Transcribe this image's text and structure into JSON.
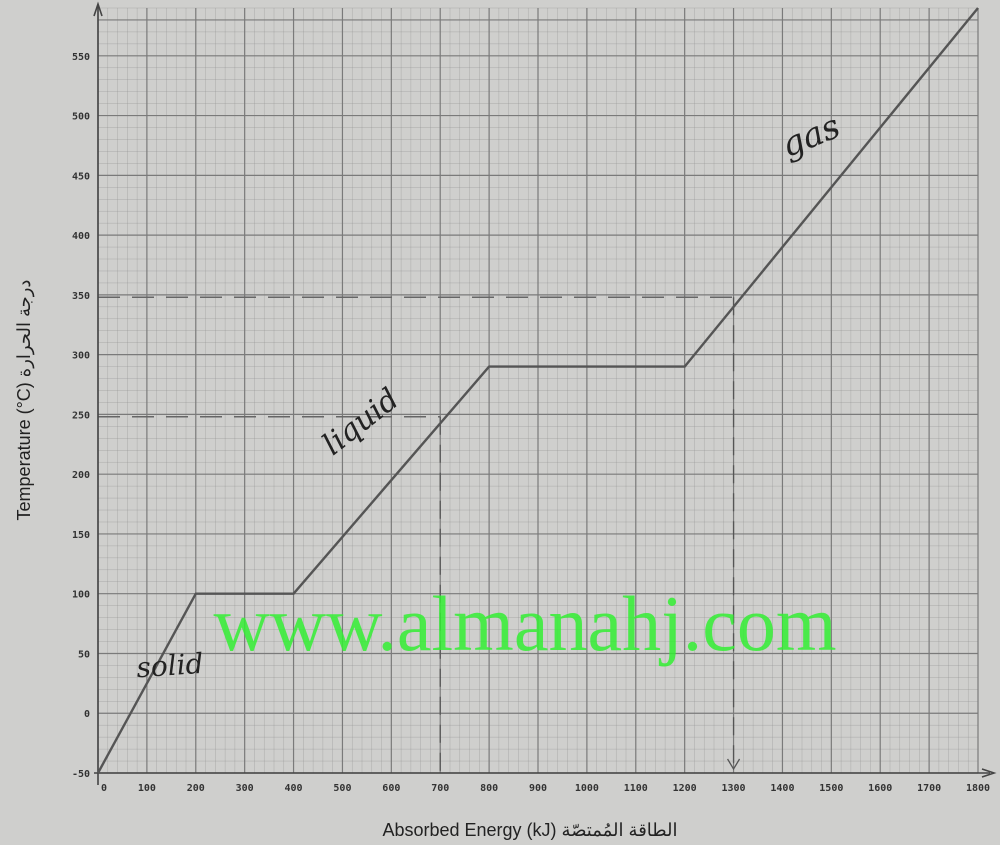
{
  "chart_data": {
    "type": "line",
    "xlabel": "Absorbed Energy (kJ) الطاقة المُمتصّة",
    "ylabel": "Temperature (°C) درجة الحرارة",
    "xlim": [
      0,
      1800
    ],
    "ylim": [
      -50,
      590
    ],
    "x_ticks": [
      "0",
      "100",
      "200",
      "300",
      "400",
      "500",
      "600",
      "700",
      "800",
      "900",
      "1000",
      "1100",
      "1200",
      "1300",
      "1400",
      "1500",
      "1600",
      "1700",
      "1800"
    ],
    "y_ticks": [
      "-50",
      "0",
      "50",
      "100",
      "150",
      "200",
      "250",
      "300",
      "350",
      "400",
      "450",
      "500",
      "550"
    ],
    "grid": true,
    "series": [
      {
        "x": [
          0,
          200,
          400,
          800,
          1200,
          1800
        ],
        "y": [
          -50,
          100,
          100,
          290,
          290,
          590
        ]
      }
    ],
    "annotations": [
      {
        "text": "solid",
        "x": 80,
        "y": 30
      },
      {
        "text": "liquid",
        "x": 480,
        "y": 215
      },
      {
        "text": "gas",
        "x": 1410,
        "y": 465
      }
    ],
    "reference_lines": [
      {
        "y": 248,
        "x_end": 700
      },
      {
        "y": 348,
        "x_end": 1300
      }
    ],
    "colors": {
      "grid": "#8c8c8c",
      "line": "#555555",
      "watermark": "#33ee33",
      "background": "#cfcfcd"
    }
  },
  "watermark": "www.almanahj.com"
}
